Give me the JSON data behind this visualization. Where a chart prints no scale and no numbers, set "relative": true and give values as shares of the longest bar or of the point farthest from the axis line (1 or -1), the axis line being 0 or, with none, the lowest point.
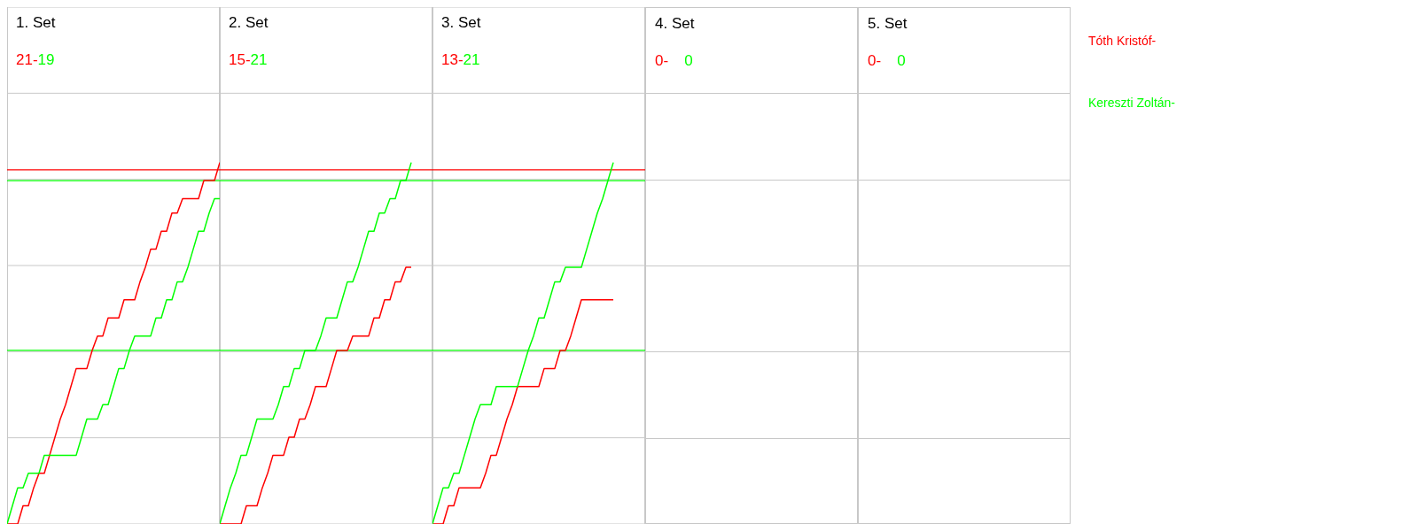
{
  "chart_data": [
    {
      "type": "line",
      "relative": true,
      "grid": true,
      "marker": "none",
      "line_style": "solid",
      "title": "1. Set",
      "annotations": [
        "21-",
        "19"
      ],
      "categories": [
        null,
        null,
        null,
        null,
        null,
        null,
        null,
        null,
        null,
        null,
        null,
        null,
        null,
        null,
        null,
        null,
        null,
        null,
        null,
        null,
        null,
        null,
        null,
        null,
        null,
        null,
        null,
        null,
        null,
        null,
        null,
        null,
        null,
        null,
        null,
        null,
        null,
        null,
        null,
        null,
        null
      ],
      "series": [
        {
          "name": "Tóth Kristóf-",
          "color": "#ff0000",
          "values": [
            0,
            0,
            0,
            0.05,
            0.05,
            0.1,
            0.14,
            0.14,
            0.19,
            0.24,
            0.29,
            0.33,
            0.38,
            0.43,
            0.43,
            0.43,
            0.48,
            0.52,
            0.52,
            0.57,
            0.57,
            0.57,
            0.62,
            0.62,
            0.62,
            0.67,
            0.71,
            0.76,
            0.76,
            0.81,
            0.81,
            0.86,
            0.86,
            0.9,
            0.9,
            0.9,
            0.9,
            0.95,
            0.95,
            0.95,
            1
          ]
        },
        {
          "name": "Kereszti Zoltán-",
          "color": "#00ff00",
          "values": [
            0,
            0.05,
            0.1,
            0.1,
            0.14,
            0.14,
            0.14,
            0.19,
            0.19,
            0.19,
            0.19,
            0.19,
            0.19,
            0.19,
            0.24,
            0.29,
            0.29,
            0.29,
            0.33,
            0.33,
            0.38,
            0.43,
            0.43,
            0.48,
            0.52,
            0.52,
            0.52,
            0.52,
            0.57,
            0.57,
            0.62,
            0.62,
            0.67,
            0.67,
            0.71,
            0.76,
            0.81,
            0.81,
            0.86,
            0.9,
            0.9
          ]
        }
      ],
      "ref_lines": [
        {
          "axis": "y",
          "value": 0.98,
          "color": "#ff0000"
        },
        {
          "axis": "y",
          "value": 0.95,
          "color": "#00ff00"
        },
        {
          "axis": "y",
          "value": 0.48,
          "color": "#00ff00"
        }
      ]
    },
    {
      "type": "line",
      "relative": true,
      "grid": true,
      "marker": "none",
      "line_style": "solid",
      "title": "2. Set",
      "annotations": [
        "15-",
        "21"
      ],
      "categories": [
        null,
        null,
        null,
        null,
        null,
        null,
        null,
        null,
        null,
        null,
        null,
        null,
        null,
        null,
        null,
        null,
        null,
        null,
        null,
        null,
        null,
        null,
        null,
        null,
        null,
        null,
        null,
        null,
        null,
        null,
        null,
        null,
        null,
        null,
        null,
        null,
        null,
        null,
        null,
        null,
        null
      ],
      "series": [
        {
          "color": "#ff0000",
          "values": [
            0,
            0,
            0,
            0,
            0,
            0.05,
            0.05,
            0.05,
            0.1,
            0.14,
            0.19,
            0.19,
            0.19,
            0.24,
            0.24,
            0.29,
            0.29,
            0.33,
            0.38,
            0.38,
            0.38,
            0.43,
            0.48,
            0.48,
            0.48,
            0.52,
            0.52,
            0.52,
            0.52,
            0.57,
            0.57,
            0.62,
            0.62,
            0.67,
            0.67,
            0.71,
            0.71,
            null,
            null,
            null,
            null
          ]
        },
        {
          "color": "#00ff00",
          "values": [
            0,
            0.05,
            0.1,
            0.14,
            0.19,
            0.19,
            0.24,
            0.29,
            0.29,
            0.29,
            0.29,
            0.33,
            0.38,
            0.38,
            0.43,
            0.43,
            0.48,
            0.48,
            0.48,
            0.52,
            0.57,
            0.57,
            0.57,
            0.62,
            0.67,
            0.67,
            0.71,
            0.76,
            0.81,
            0.81,
            0.86,
            0.86,
            0.9,
            0.9,
            0.95,
            0.95,
            1,
            null,
            null,
            null,
            null
          ]
        }
      ],
      "ref_lines": [
        {
          "axis": "y",
          "value": 0.98,
          "color": "#ff0000"
        },
        {
          "axis": "y",
          "value": 0.95,
          "color": "#00ff00"
        },
        {
          "axis": "y",
          "value": 0.48,
          "color": "#00ff00"
        }
      ]
    },
    {
      "type": "line",
      "relative": true,
      "grid": true,
      "marker": "none",
      "line_style": "solid",
      "title": "3. Set",
      "annotations": [
        "13-",
        "21"
      ],
      "categories": [
        null,
        null,
        null,
        null,
        null,
        null,
        null,
        null,
        null,
        null,
        null,
        null,
        null,
        null,
        null,
        null,
        null,
        null,
        null,
        null,
        null,
        null,
        null,
        null,
        null,
        null,
        null,
        null,
        null,
        null,
        null,
        null,
        null,
        null,
        null,
        null,
        null,
        null,
        null,
        null,
        null
      ],
      "series": [
        {
          "color": "#ff0000",
          "values": [
            0,
            0,
            0,
            0.05,
            0.05,
            0.1,
            0.1,
            0.1,
            0.1,
            0.1,
            0.14,
            0.19,
            0.19,
            0.24,
            0.29,
            0.33,
            0.38,
            0.38,
            0.38,
            0.38,
            0.38,
            0.43,
            0.43,
            0.43,
            0.48,
            0.48,
            0.52,
            0.57,
            0.62,
            0.62,
            0.62,
            0.62,
            0.62,
            0.62,
            0.62,
            null,
            null,
            null,
            null,
            null,
            null
          ]
        },
        {
          "color": "#00ff00",
          "values": [
            0,
            0.05,
            0.1,
            0.1,
            0.14,
            0.14,
            0.19,
            0.24,
            0.29,
            0.33,
            0.33,
            0.33,
            0.38,
            0.38,
            0.38,
            0.38,
            0.38,
            0.43,
            0.48,
            0.52,
            0.57,
            0.57,
            0.62,
            0.67,
            0.67,
            0.71,
            0.71,
            0.71,
            0.71,
            0.76,
            0.81,
            0.86,
            0.9,
            0.95,
            1,
            null,
            null,
            null,
            null,
            null,
            null
          ]
        }
      ],
      "ref_lines": [
        {
          "axis": "y",
          "value": 0.98,
          "color": "#ff0000"
        },
        {
          "axis": "y",
          "value": 0.95,
          "color": "#00ff00"
        },
        {
          "axis": "y",
          "value": 0.48,
          "color": "#00ff00"
        }
      ]
    },
    {
      "type": "other",
      "title": "4. Set",
      "annotations": [
        "0-",
        "0"
      ]
    },
    {
      "type": "other",
      "title": "5. Set",
      "annotations": [
        "0-",
        "0"
      ]
    }
  ]
}
